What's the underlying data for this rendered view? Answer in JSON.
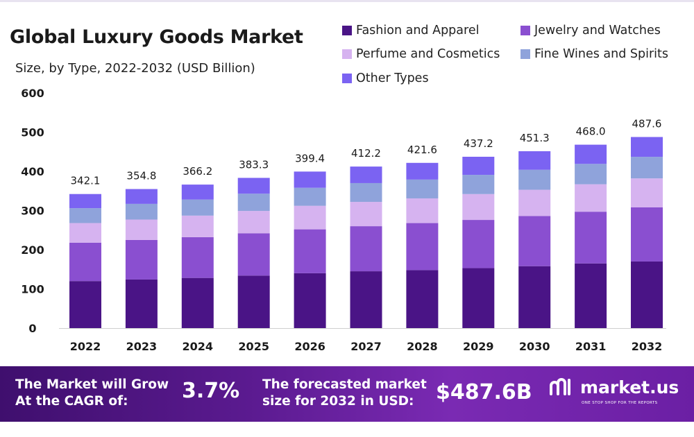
{
  "chart_data": {
    "type": "bar",
    "stacked": true,
    "title": "Global Luxury Goods Market",
    "subtitle": "Size, by Type, 2022-2032 (USD Billion)",
    "xlabel": "",
    "ylabel": "",
    "ylim": [
      0,
      600
    ],
    "yticks": [
      0,
      100,
      200,
      300,
      400,
      500,
      600
    ],
    "grid": false,
    "legend_position": "top-right",
    "categories": [
      "2022",
      "2023",
      "2024",
      "2025",
      "2026",
      "2027",
      "2028",
      "2029",
      "2030",
      "2031",
      "2032"
    ],
    "series": [
      {
        "name": "Fashion and Apparel",
        "color": "#4a1486",
        "values": [
          120,
          124,
          128,
          134,
          140,
          145,
          148,
          153,
          158,
          165,
          170
        ]
      },
      {
        "name": "Jewelry and Watches",
        "color": "#8a4fd0",
        "values": [
          98,
          101,
          104,
          108,
          112,
          115,
          120,
          123,
          128,
          132,
          138
        ]
      },
      {
        "name": "Perfume and Cosmetics",
        "color": "#d6b3f0",
        "values": [
          50,
          52,
          55,
          57,
          60,
          62,
          63,
          66,
          67,
          70,
          74
        ]
      },
      {
        "name": "Fine Wines and Spirits",
        "color": "#8fa3db",
        "values": [
          38,
          40,
          41,
          44,
          46,
          48,
          48,
          49,
          51,
          52,
          55
        ]
      },
      {
        "name": "Other Types",
        "color": "#7b63f2",
        "values": [
          36.1,
          37.8,
          38.2,
          40.3,
          41.4,
          42.2,
          42.6,
          46.2,
          47.3,
          49.0,
          50.6
        ]
      }
    ],
    "totals": [
      "342.1",
      "354.8",
      "366.2",
      "383.3",
      "399.4",
      "412.2",
      "421.6",
      "437.2",
      "451.3",
      "468.0",
      "487.6"
    ],
    "legend_order": [
      0,
      1,
      2,
      3,
      4
    ]
  },
  "footer": {
    "cagr_text_line1": "The Market will Grow",
    "cagr_text_line2": "At the CAGR of:",
    "cagr_value": "3.7%",
    "forecast_text_line1": "The forecasted market",
    "forecast_text_line2": "size for 2032 in USD:",
    "forecast_value": "$487.6B",
    "brand_name": "market.us",
    "brand_tagline": "ONE STOP SHOP FOR THE REPORTS",
    "brand_icon": "market-us-logo-icon"
  }
}
